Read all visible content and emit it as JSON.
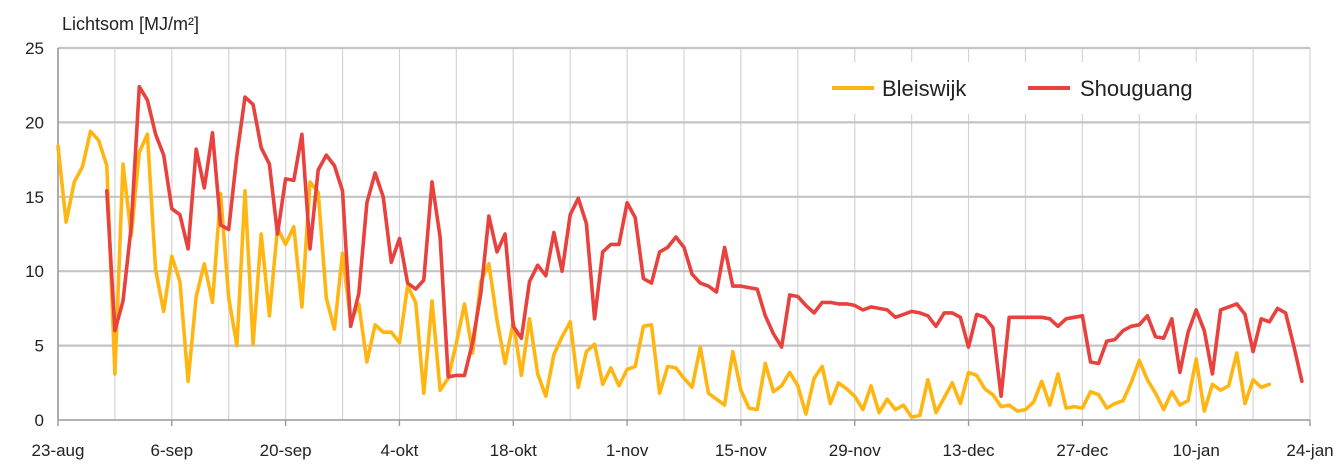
{
  "chart_data": {
    "type": "line",
    "ylabel": "Lichtsom [MJ/m²]",
    "xlabel": "",
    "ylim": [
      0,
      25
    ],
    "yticks": [
      0,
      5,
      10,
      15,
      20,
      25
    ],
    "x_start_label": "23-aug",
    "x_tick_labels": [
      "23-aug",
      "6-sep",
      "20-sep",
      "4-okt",
      "18-okt",
      "1-nov",
      "15-nov",
      "29-nov",
      "13-dec",
      "27-dec",
      "10-jan",
      "24-jan"
    ],
    "grid": true,
    "legend_position": "top-right",
    "series": [
      {
        "name": "Bleiswijk",
        "color": "#FFB612",
        "values": [
          18.4,
          13.3,
          16.0,
          17.0,
          19.4,
          18.8,
          17.1,
          3.1,
          17.2,
          12.4,
          18.0,
          19.2,
          10.1,
          7.3,
          11.0,
          9.3,
          2.6,
          8.3,
          10.5,
          7.9,
          15.2,
          8.2,
          5.0,
          15.4,
          5.1,
          12.5,
          7.0,
          12.9,
          11.8,
          13.0,
          7.6,
          16.0,
          15.3,
          8.2,
          6.1,
          11.2,
          6.6,
          7.8,
          3.9,
          6.4,
          5.9,
          5.9,
          5.2,
          9.0,
          7.9,
          1.8,
          8.0,
          2.0,
          2.8,
          5.2,
          7.8,
          4.5,
          9.3,
          10.5,
          6.7,
          3.8,
          6.6,
          3.0,
          6.8,
          3.1,
          1.6,
          4.4,
          5.6,
          6.6,
          2.2,
          4.6,
          5.1,
          2.4,
          3.5,
          2.3,
          3.4,
          3.6,
          6.3,
          6.4,
          1.8,
          3.6,
          3.5,
          2.8,
          2.2,
          4.9,
          1.8,
          1.4,
          1.0,
          4.6,
          2.0,
          0.8,
          0.7,
          3.8,
          1.9,
          2.3,
          3.2,
          2.3,
          0.4,
          2.8,
          3.6,
          1.1,
          2.5,
          2.1,
          1.6,
          0.7,
          2.3,
          0.5,
          1.4,
          0.7,
          1.0,
          0.2,
          0.3,
          2.7,
          0.5,
          1.5,
          2.5,
          1.1,
          3.2,
          3.0,
          2.1,
          1.7,
          0.9,
          1.0,
          0.6,
          0.7,
          1.2,
          2.6,
          1.0,
          3.1,
          0.8,
          0.9,
          0.8,
          1.9,
          1.7,
          0.8,
          1.1,
          1.3,
          2.5,
          4.0,
          2.7,
          1.8,
          0.7,
          1.9,
          1.0,
          1.3,
          4.1,
          0.6,
          2.4,
          2.0,
          2.3,
          4.5,
          1.1,
          2.7,
          2.2,
          2.4
        ]
      },
      {
        "name": "Shouguang",
        "color": "#E8413E",
        "values": [
          15.4,
          6.0,
          8.0,
          13.0,
          22.4,
          21.5,
          19.2,
          17.8,
          14.2,
          13.8,
          11.5,
          18.2,
          15.6,
          19.3,
          13.1,
          12.8,
          17.8,
          21.7,
          21.2,
          18.3,
          17.2,
          12.5,
          16.2,
          16.1,
          19.2,
          11.5,
          16.8,
          17.8,
          17.1,
          15.4,
          6.3,
          8.5,
          14.6,
          16.6,
          15.0,
          10.6,
          12.2,
          9.2,
          8.8,
          9.4,
          16.0,
          12.3,
          2.9,
          3.0,
          3.0,
          5.2,
          8.5,
          13.7,
          11.3,
          12.5,
          6.3,
          5.5,
          9.3,
          10.4,
          9.7,
          12.6,
          10.0,
          13.8,
          14.9,
          13.2,
          6.8,
          11.3,
          11.8,
          11.8,
          14.6,
          13.6,
          9.5,
          9.2,
          11.3,
          11.6,
          12.3,
          11.6,
          9.8,
          9.2,
          9.0,
          8.6,
          11.6,
          9.0,
          9.0,
          8.9,
          8.8,
          7.0,
          5.8,
          4.9,
          8.4,
          8.3,
          7.7,
          7.2,
          7.9,
          7.9,
          7.8,
          7.8,
          7.7,
          7.4,
          7.6,
          7.5,
          7.4,
          6.9,
          7.1,
          7.3,
          7.2,
          7.0,
          6.3,
          7.2,
          7.2,
          6.9,
          4.9,
          7.1,
          6.9,
          6.2,
          1.6,
          6.9,
          6.9,
          6.9,
          6.9,
          6.9,
          6.8,
          6.3,
          6.8,
          6.9,
          7.0,
          3.9,
          3.8,
          5.3,
          5.4,
          6.0,
          6.3,
          6.4,
          7.0,
          5.6,
          5.5,
          6.8,
          3.2,
          5.9,
          7.4,
          6.0,
          3.1,
          7.4,
          7.6,
          7.8,
          7.1,
          4.6,
          6.8,
          6.6,
          7.5,
          7.2,
          5.0,
          2.6
        ]
      }
    ]
  }
}
